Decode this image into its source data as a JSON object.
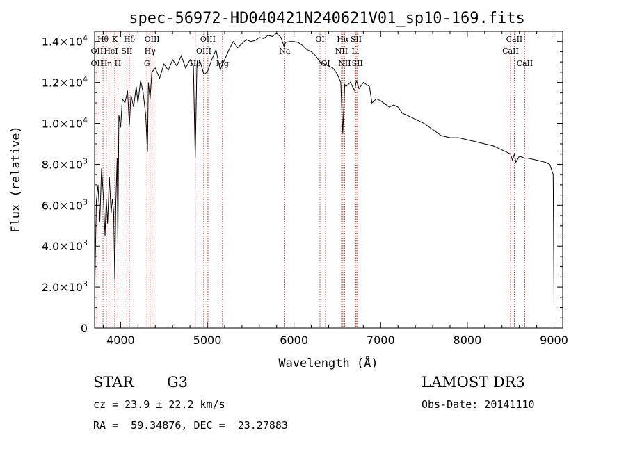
{
  "chart_data": {
    "type": "line",
    "title": "spec-56972-HD040421N240621V01_sp10-169.fits",
    "xlabel": "Wavelength (Å)",
    "ylabel": "Flux (relative)",
    "xlim": [
      3700,
      9100
    ],
    "ylim": [
      0,
      14500
    ],
    "xticks": [
      {
        "value": 4000,
        "label": "4000"
      },
      {
        "value": 5000,
        "label": "5000"
      },
      {
        "value": 6000,
        "label": "6000"
      },
      {
        "value": 7000,
        "label": "7000"
      },
      {
        "value": 8000,
        "label": "8000"
      },
      {
        "value": 9000,
        "label": "9000"
      }
    ],
    "yticks": [
      {
        "value": 0,
        "mant": "0",
        "exp": ""
      },
      {
        "value": 2000,
        "mant": "2.0×10",
        "exp": "3"
      },
      {
        "value": 4000,
        "mant": "4.0×10",
        "exp": "3"
      },
      {
        "value": 6000,
        "mant": "6.0×10",
        "exp": "3"
      },
      {
        "value": 8000,
        "mant": "8.0×10",
        "exp": "3"
      },
      {
        "value": 10000,
        "mant": "1.0×10",
        "exp": "4"
      },
      {
        "value": 12000,
        "mant": "1.2×10",
        "exp": "4"
      },
      {
        "value": 14000,
        "mant": "1.4×10",
        "exp": "4"
      }
    ],
    "spectrum": {
      "x": [
        3700,
        3705,
        3720,
        3740,
        3760,
        3780,
        3800,
        3820,
        3835,
        3850,
        3870,
        3890,
        3905,
        3920,
        3933,
        3945,
        3960,
        3968,
        3980,
        4000,
        4020,
        4050,
        4080,
        4101,
        4120,
        4150,
        4180,
        4200,
        4230,
        4260,
        4290,
        4310,
        4320,
        4340,
        4360,
        4400,
        4450,
        4500,
        4550,
        4600,
        4650,
        4700,
        4750,
        4800,
        4840,
        4861,
        4880,
        4920,
        4960,
        5000,
        5050,
        5100,
        5150,
        5175,
        5200,
        5250,
        5300,
        5350,
        5400,
        5450,
        5500,
        5550,
        5600,
        5650,
        5700,
        5750,
        5800,
        5850,
        5890,
        5900,
        5950,
        6000,
        6050,
        6100,
        6150,
        6200,
        6250,
        6300,
        6350,
        6400,
        6450,
        6500,
        6540,
        6563,
        6585,
        6600,
        6650,
        6700,
        6720,
        6750,
        6800,
        6870,
        6900,
        6950,
        7000,
        7100,
        7150,
        7200,
        7250,
        7300,
        7400,
        7500,
        7600,
        7700,
        7800,
        7900,
        8000,
        8100,
        8200,
        8300,
        8400,
        8450,
        8498,
        8520,
        8542,
        8560,
        8600,
        8662,
        8700,
        8800,
        8900,
        8950,
        8990,
        9000
      ],
      "y": [
        0,
        2500,
        6200,
        7000,
        5200,
        7800,
        6500,
        4500,
        6300,
        5100,
        7400,
        5600,
        6300,
        5700,
        2400,
        6100,
        8300,
        4200,
        10400,
        9800,
        11200,
        11000,
        11600,
        9900,
        11400,
        10800,
        11800,
        11000,
        12100,
        11500,
        10400,
        8600,
        12000,
        11200,
        12500,
        12700,
        12200,
        12900,
        12600,
        13100,
        12800,
        13300,
        12700,
        13100,
        12800,
        8300,
        12900,
        13000,
        12400,
        12500,
        13100,
        13600,
        12600,
        12900,
        13100,
        13600,
        14000,
        13700,
        13900,
        14100,
        14000,
        14050,
        14200,
        14150,
        14300,
        14250,
        14400,
        14200,
        13700,
        13950,
        14000,
        14000,
        13950,
        13800,
        13600,
        13500,
        13300,
        13000,
        12900,
        12800,
        12700,
        12400,
        12000,
        9500,
        11900,
        11800,
        12000,
        11600,
        12100,
        11700,
        12000,
        11800,
        11000,
        11200,
        11100,
        10800,
        10900,
        10800,
        10500,
        10400,
        10200,
        10000,
        9700,
        9400,
        9300,
        9300,
        9200,
        9100,
        9000,
        8900,
        8700,
        8600,
        8500,
        8200,
        8500,
        8100,
        8400,
        8300,
        8300,
        8200,
        8100,
        8000,
        7500,
        1200
      ]
    },
    "lines": [
      {
        "name": "Hδ",
        "x": 4101,
        "row": 1
      },
      {
        "name": "K",
        "x": 3933,
        "row": 1
      },
      {
        "name": "Hθ",
        "x": 3797,
        "row": 1
      },
      {
        "name": "OII",
        "x": 3727,
        "row": 2
      },
      {
        "name": "HeI",
        "x": 3889,
        "row": 2
      },
      {
        "name": "SII",
        "x": 4072,
        "row": 2
      },
      {
        "name": "OII",
        "x": 3727,
        "row": 3
      },
      {
        "name": "Hη",
        "x": 3835,
        "row": 3
      },
      {
        "name": "H",
        "x": 3968,
        "row": 3
      },
      {
        "name": "OIII",
        "x": 4363,
        "row": 1
      },
      {
        "name": "Hγ",
        "x": 4340,
        "row": 2
      },
      {
        "name": "G",
        "x": 4304,
        "row": 3
      },
      {
        "name": "Hβ",
        "x": 4861,
        "row": 3
      },
      {
        "name": "OIII",
        "x": 5007,
        "row": 1
      },
      {
        "name": "OIII",
        "x": 4959,
        "row": 2
      },
      {
        "name": "Mg",
        "x": 5175,
        "row": 3
      },
      {
        "name": "Na",
        "x": 5893,
        "row": 2
      },
      {
        "name": "OI",
        "x": 6300,
        "row": 1
      },
      {
        "name": "OI",
        "x": 6364,
        "row": 3
      },
      {
        "name": "Hα",
        "x": 6563,
        "row": 1
      },
      {
        "name": "SII",
        "x": 6717,
        "row": 1
      },
      {
        "name": "NII",
        "x": 6548,
        "row": 2
      },
      {
        "name": "Li",
        "x": 6708,
        "row": 2
      },
      {
        "name": "NII",
        "x": 6584,
        "row": 3
      },
      {
        "name": "SII",
        "x": 6731,
        "row": 3
      },
      {
        "name": "CaII",
        "x": 8542,
        "row": 1
      },
      {
        "name": "CaII",
        "x": 8498,
        "row": 2
      },
      {
        "name": "CaII",
        "x": 8662,
        "row": 3
      }
    ]
  },
  "info": {
    "object_class": "STAR",
    "subclass": "G3",
    "survey": "LAMOST DR3",
    "redshift": "cz = 23.9 ± 22.2 km/s",
    "obs_date": "Obs-Date: 20141110",
    "coords": "RA =  59.34876, DEC =  23.27883"
  }
}
